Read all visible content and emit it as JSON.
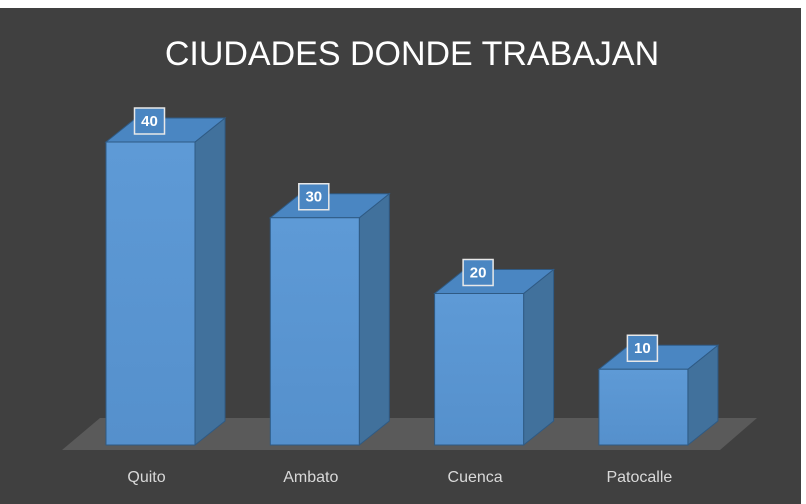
{
  "chart_data": {
    "type": "bar3d",
    "title": "CIUDADES DONDE TRABAJAN",
    "categories": [
      "Quito",
      "Ambato",
      "Cuenca",
      "Patocalle"
    ],
    "values": [
      40,
      30,
      20,
      10
    ],
    "color": "#5b9bd5"
  }
}
